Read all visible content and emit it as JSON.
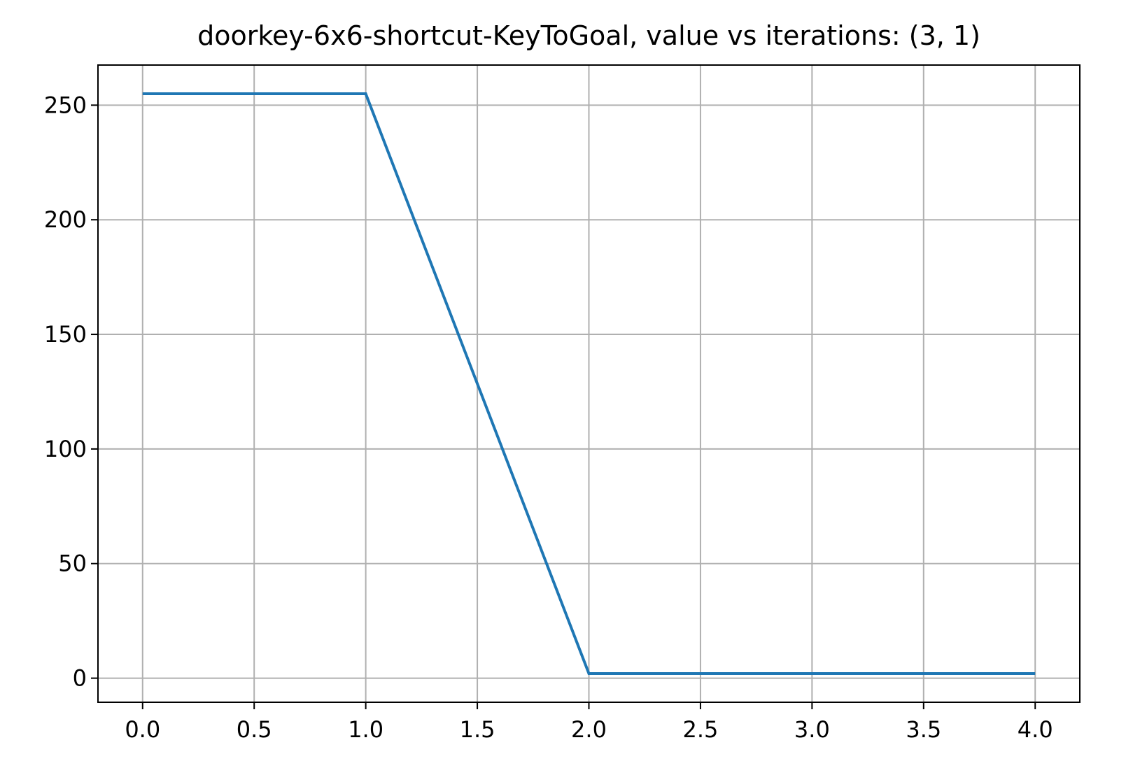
{
  "chart_data": {
    "type": "line",
    "title": "doorkey-6x6-shortcut-KeyToGoal, value vs iterations: (3, 1)",
    "xlabel": "",
    "ylabel": "",
    "xlim": [
      -0.2,
      4.2
    ],
    "ylim": [
      -10.5,
      267.5
    ],
    "xticks": [
      0.0,
      0.5,
      1.0,
      1.5,
      2.0,
      2.5,
      3.0,
      3.5,
      4.0
    ],
    "xtick_labels": [
      "0.0",
      "0.5",
      "1.0",
      "1.5",
      "2.0",
      "2.5",
      "3.0",
      "3.5",
      "4.0"
    ],
    "yticks": [
      0,
      50,
      100,
      150,
      200,
      250
    ],
    "ytick_labels": [
      "0",
      "50",
      "100",
      "150",
      "200",
      "250"
    ],
    "grid": true,
    "series": [
      {
        "color": "#1f77b4",
        "x": [
          0,
          1,
          2,
          3,
          4
        ],
        "y": [
          255,
          255,
          2,
          2,
          2
        ]
      }
    ]
  }
}
